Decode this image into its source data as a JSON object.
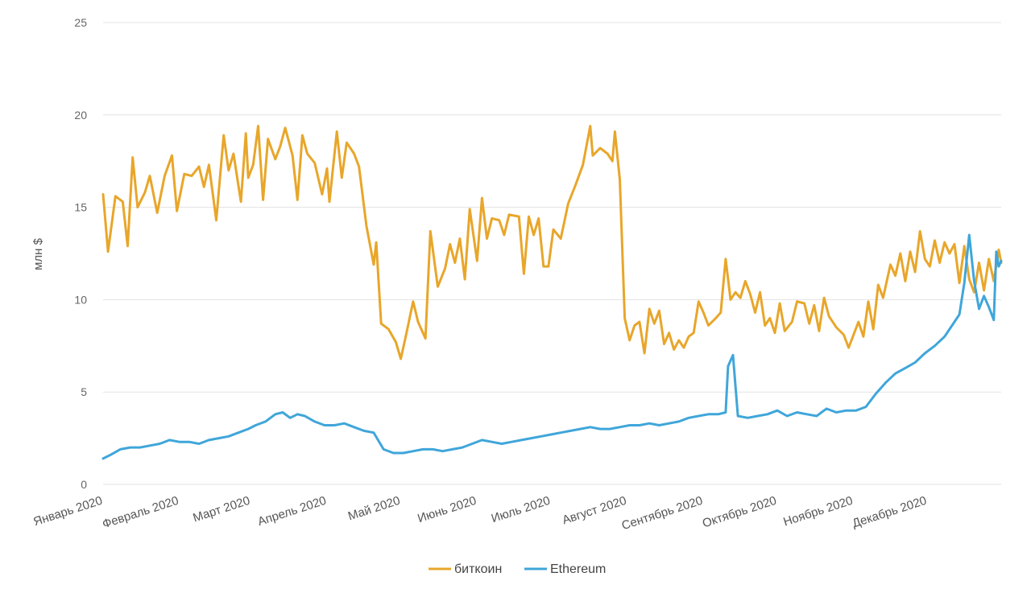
{
  "chart_data": {
    "type": "line",
    "title": "",
    "xlabel": "",
    "ylabel": "млн $",
    "ylim": [
      0,
      25
    ],
    "yticks": [
      0,
      5,
      10,
      15,
      20,
      25
    ],
    "grid": true,
    "legend_position": "bottom-center",
    "xlim": [
      "2020-01-01",
      "2020-12-31"
    ],
    "categories": [
      "Январь 2020",
      "Февраль 2020",
      "Март 2020",
      "Апрель 2020",
      "Май 2020",
      "Июнь 2020",
      "Июль 2020",
      "Август 2020",
      "Сентябрь 2020",
      "Октябрь 2020",
      "Ноябрь 2020",
      "Декабрь 2020"
    ],
    "category_dates": [
      "2020-01-01",
      "2020-02-01",
      "2020-03-01",
      "2020-04-01",
      "2020-05-01",
      "2020-06-01",
      "2020-07-01",
      "2020-08-01",
      "2020-09-01",
      "2020-10-01",
      "2020-11-01",
      "2020-12-01"
    ],
    "series": [
      {
        "name": "биткоин",
        "color": "#E8A62A",
        "points": [
          [
            "2020-01-01",
            15.7
          ],
          [
            "2020-01-03",
            12.6
          ],
          [
            "2020-01-06",
            15.6
          ],
          [
            "2020-01-09",
            15.3
          ],
          [
            "2020-01-11",
            12.9
          ],
          [
            "2020-01-13",
            17.7
          ],
          [
            "2020-01-15",
            15.0
          ],
          [
            "2020-01-18",
            15.8
          ],
          [
            "2020-01-20",
            16.7
          ],
          [
            "2020-01-23",
            14.7
          ],
          [
            "2020-01-26",
            16.7
          ],
          [
            "2020-01-29",
            17.8
          ],
          [
            "2020-01-31",
            14.8
          ],
          [
            "2020-02-03",
            16.8
          ],
          [
            "2020-02-06",
            16.7
          ],
          [
            "2020-02-09",
            17.2
          ],
          [
            "2020-02-11",
            16.1
          ],
          [
            "2020-02-13",
            17.3
          ],
          [
            "2020-02-16",
            14.3
          ],
          [
            "2020-02-19",
            18.9
          ],
          [
            "2020-02-21",
            17.0
          ],
          [
            "2020-02-23",
            17.9
          ],
          [
            "2020-02-26",
            15.3
          ],
          [
            "2020-02-28",
            19.0
          ],
          [
            "2020-02-29",
            16.6
          ],
          [
            "2020-03-02",
            17.3
          ],
          [
            "2020-03-04",
            19.4
          ],
          [
            "2020-03-06",
            15.4
          ],
          [
            "2020-03-08",
            18.7
          ],
          [
            "2020-03-11",
            17.6
          ],
          [
            "2020-03-13",
            18.3
          ],
          [
            "2020-03-15",
            19.3
          ],
          [
            "2020-03-18",
            17.8
          ],
          [
            "2020-03-20",
            15.4
          ],
          [
            "2020-03-22",
            18.9
          ],
          [
            "2020-03-24",
            17.9
          ],
          [
            "2020-03-27",
            17.4
          ],
          [
            "2020-03-30",
            15.7
          ],
          [
            "2020-04-01",
            17.1
          ],
          [
            "2020-04-02",
            15.3
          ],
          [
            "2020-04-05",
            19.1
          ],
          [
            "2020-04-07",
            16.6
          ],
          [
            "2020-04-09",
            18.5
          ],
          [
            "2020-04-12",
            17.9
          ],
          [
            "2020-04-14",
            17.2
          ],
          [
            "2020-04-17",
            14.0
          ],
          [
            "2020-04-20",
            11.9
          ],
          [
            "2020-04-21",
            13.1
          ],
          [
            "2020-04-23",
            8.7
          ],
          [
            "2020-04-26",
            8.4
          ],
          [
            "2020-04-29",
            7.7
          ],
          [
            "2020-05-01",
            6.8
          ],
          [
            "2020-05-03",
            8.0
          ],
          [
            "2020-05-06",
            9.9
          ],
          [
            "2020-05-08",
            8.8
          ],
          [
            "2020-05-11",
            7.9
          ],
          [
            "2020-05-13",
            13.7
          ],
          [
            "2020-05-16",
            10.7
          ],
          [
            "2020-05-19",
            11.7
          ],
          [
            "2020-05-21",
            13.0
          ],
          [
            "2020-05-23",
            12.0
          ],
          [
            "2020-05-25",
            13.3
          ],
          [
            "2020-05-27",
            11.1
          ],
          [
            "2020-05-29",
            14.9
          ],
          [
            "2020-06-01",
            12.1
          ],
          [
            "2020-06-03",
            15.5
          ],
          [
            "2020-06-05",
            13.3
          ],
          [
            "2020-06-07",
            14.4
          ],
          [
            "2020-06-10",
            14.3
          ],
          [
            "2020-06-12",
            13.5
          ],
          [
            "2020-06-14",
            14.6
          ],
          [
            "2020-06-18",
            14.5
          ],
          [
            "2020-06-20",
            11.4
          ],
          [
            "2020-06-22",
            14.5
          ],
          [
            "2020-06-24",
            13.5
          ],
          [
            "2020-06-26",
            14.4
          ],
          [
            "2020-06-28",
            11.8
          ],
          [
            "2020-06-30",
            11.8
          ],
          [
            "2020-07-02",
            13.8
          ],
          [
            "2020-07-05",
            13.3
          ],
          [
            "2020-07-08",
            15.2
          ],
          [
            "2020-07-11",
            16.2
          ],
          [
            "2020-07-14",
            17.3
          ],
          [
            "2020-07-17",
            19.4
          ],
          [
            "2020-07-18",
            17.8
          ],
          [
            "2020-07-21",
            18.2
          ],
          [
            "2020-07-24",
            17.9
          ],
          [
            "2020-07-26",
            17.5
          ],
          [
            "2020-07-27",
            19.1
          ],
          [
            "2020-07-29",
            16.5
          ],
          [
            "2020-07-31",
            9.0
          ],
          [
            "2020-08-02",
            7.8
          ],
          [
            "2020-08-04",
            8.6
          ],
          [
            "2020-08-06",
            8.8
          ],
          [
            "2020-08-08",
            7.1
          ],
          [
            "2020-08-10",
            9.5
          ],
          [
            "2020-08-12",
            8.7
          ],
          [
            "2020-08-14",
            9.4
          ],
          [
            "2020-08-16",
            7.6
          ],
          [
            "2020-08-18",
            8.2
          ],
          [
            "2020-08-20",
            7.3
          ],
          [
            "2020-08-22",
            7.8
          ],
          [
            "2020-08-24",
            7.4
          ],
          [
            "2020-08-26",
            8.0
          ],
          [
            "2020-08-28",
            8.2
          ],
          [
            "2020-08-30",
            9.9
          ],
          [
            "2020-09-01",
            9.3
          ],
          [
            "2020-09-03",
            8.6
          ],
          [
            "2020-09-06",
            9.0
          ],
          [
            "2020-09-08",
            9.3
          ],
          [
            "2020-09-10",
            12.2
          ],
          [
            "2020-09-12",
            10.0
          ],
          [
            "2020-09-14",
            10.4
          ],
          [
            "2020-09-16",
            10.1
          ],
          [
            "2020-09-18",
            11.0
          ],
          [
            "2020-09-20",
            10.3
          ],
          [
            "2020-09-22",
            9.3
          ],
          [
            "2020-09-24",
            10.4
          ],
          [
            "2020-09-26",
            8.6
          ],
          [
            "2020-09-28",
            9.0
          ],
          [
            "2020-09-30",
            8.2
          ],
          [
            "2020-10-02",
            9.8
          ],
          [
            "2020-10-04",
            8.3
          ],
          [
            "2020-10-07",
            8.8
          ],
          [
            "2020-10-09",
            9.9
          ],
          [
            "2020-10-12",
            9.8
          ],
          [
            "2020-10-14",
            8.7
          ],
          [
            "2020-10-16",
            9.7
          ],
          [
            "2020-10-18",
            8.3
          ],
          [
            "2020-10-20",
            10.1
          ],
          [
            "2020-10-22",
            9.1
          ],
          [
            "2020-10-25",
            8.5
          ],
          [
            "2020-10-28",
            8.1
          ],
          [
            "2020-10-30",
            7.4
          ],
          [
            "2020-11-01",
            8.1
          ],
          [
            "2020-11-03",
            8.8
          ],
          [
            "2020-11-05",
            8.0
          ],
          [
            "2020-11-07",
            9.9
          ],
          [
            "2020-11-09",
            8.4
          ],
          [
            "2020-11-11",
            10.8
          ],
          [
            "2020-11-13",
            10.1
          ],
          [
            "2020-11-16",
            11.9
          ],
          [
            "2020-11-18",
            11.3
          ],
          [
            "2020-11-20",
            12.5
          ],
          [
            "2020-11-22",
            11.0
          ],
          [
            "2020-11-24",
            12.6
          ],
          [
            "2020-11-26",
            11.5
          ],
          [
            "2020-11-28",
            13.7
          ],
          [
            "2020-11-30",
            12.2
          ],
          [
            "2020-12-02",
            11.8
          ],
          [
            "2020-12-04",
            13.2
          ],
          [
            "2020-12-06",
            12.0
          ],
          [
            "2020-12-08",
            13.1
          ],
          [
            "2020-12-10",
            12.5
          ],
          [
            "2020-12-12",
            13.0
          ],
          [
            "2020-12-14",
            10.9
          ],
          [
            "2020-12-16",
            12.9
          ],
          [
            "2020-12-18",
            11.1
          ],
          [
            "2020-12-20",
            10.4
          ],
          [
            "2020-12-22",
            12.0
          ],
          [
            "2020-12-24",
            10.5
          ],
          [
            "2020-12-26",
            12.2
          ],
          [
            "2020-12-28",
            11.0
          ],
          [
            "2020-12-30",
            12.7
          ],
          [
            "2020-12-31",
            12.0
          ]
        ]
      },
      {
        "name": "Ethereum",
        "color": "#3FA6DA",
        "points": [
          [
            "2020-01-01",
            1.4
          ],
          [
            "2020-01-04",
            1.6
          ],
          [
            "2020-01-08",
            1.9
          ],
          [
            "2020-01-12",
            2.0
          ],
          [
            "2020-01-16",
            2.0
          ],
          [
            "2020-01-20",
            2.1
          ],
          [
            "2020-01-24",
            2.2
          ],
          [
            "2020-01-28",
            2.4
          ],
          [
            "2020-02-01",
            2.3
          ],
          [
            "2020-02-05",
            2.3
          ],
          [
            "2020-02-09",
            2.2
          ],
          [
            "2020-02-13",
            2.4
          ],
          [
            "2020-02-17",
            2.5
          ],
          [
            "2020-02-21",
            2.6
          ],
          [
            "2020-02-25",
            2.8
          ],
          [
            "2020-02-29",
            3.0
          ],
          [
            "2020-03-03",
            3.2
          ],
          [
            "2020-03-07",
            3.4
          ],
          [
            "2020-03-11",
            3.8
          ],
          [
            "2020-03-14",
            3.9
          ],
          [
            "2020-03-17",
            3.6
          ],
          [
            "2020-03-20",
            3.8
          ],
          [
            "2020-03-23",
            3.7
          ],
          [
            "2020-03-27",
            3.4
          ],
          [
            "2020-03-31",
            3.2
          ],
          [
            "2020-04-04",
            3.2
          ],
          [
            "2020-04-08",
            3.3
          ],
          [
            "2020-04-12",
            3.1
          ],
          [
            "2020-04-16",
            2.9
          ],
          [
            "2020-04-20",
            2.8
          ],
          [
            "2020-04-24",
            1.9
          ],
          [
            "2020-04-28",
            1.7
          ],
          [
            "2020-05-02",
            1.7
          ],
          [
            "2020-05-06",
            1.8
          ],
          [
            "2020-05-10",
            1.9
          ],
          [
            "2020-05-14",
            1.9
          ],
          [
            "2020-05-18",
            1.8
          ],
          [
            "2020-05-22",
            1.9
          ],
          [
            "2020-05-26",
            2.0
          ],
          [
            "2020-05-30",
            2.2
          ],
          [
            "2020-06-03",
            2.4
          ],
          [
            "2020-06-07",
            2.3
          ],
          [
            "2020-06-11",
            2.2
          ],
          [
            "2020-06-15",
            2.3
          ],
          [
            "2020-06-19",
            2.4
          ],
          [
            "2020-06-23",
            2.5
          ],
          [
            "2020-06-27",
            2.6
          ],
          [
            "2020-07-01",
            2.7
          ],
          [
            "2020-07-05",
            2.8
          ],
          [
            "2020-07-09",
            2.9
          ],
          [
            "2020-07-13",
            3.0
          ],
          [
            "2020-07-17",
            3.1
          ],
          [
            "2020-07-21",
            3.0
          ],
          [
            "2020-07-25",
            3.0
          ],
          [
            "2020-07-29",
            3.1
          ],
          [
            "2020-08-02",
            3.2
          ],
          [
            "2020-08-06",
            3.2
          ],
          [
            "2020-08-10",
            3.3
          ],
          [
            "2020-08-14",
            3.2
          ],
          [
            "2020-08-18",
            3.3
          ],
          [
            "2020-08-22",
            3.4
          ],
          [
            "2020-08-26",
            3.6
          ],
          [
            "2020-08-30",
            3.7
          ],
          [
            "2020-09-03",
            3.8
          ],
          [
            "2020-09-07",
            3.8
          ],
          [
            "2020-09-10",
            3.9
          ],
          [
            "2020-09-11",
            6.4
          ],
          [
            "2020-09-13",
            7.0
          ],
          [
            "2020-09-15",
            3.7
          ],
          [
            "2020-09-19",
            3.6
          ],
          [
            "2020-09-23",
            3.7
          ],
          [
            "2020-09-27",
            3.8
          ],
          [
            "2020-10-01",
            4.0
          ],
          [
            "2020-10-05",
            3.7
          ],
          [
            "2020-10-09",
            3.9
          ],
          [
            "2020-10-13",
            3.8
          ],
          [
            "2020-10-17",
            3.7
          ],
          [
            "2020-10-21",
            4.1
          ],
          [
            "2020-10-25",
            3.9
          ],
          [
            "2020-10-29",
            4.0
          ],
          [
            "2020-11-02",
            4.0
          ],
          [
            "2020-11-06",
            4.2
          ],
          [
            "2020-11-10",
            4.9
          ],
          [
            "2020-11-14",
            5.5
          ],
          [
            "2020-11-18",
            6.0
          ],
          [
            "2020-11-22",
            6.3
          ],
          [
            "2020-11-26",
            6.6
          ],
          [
            "2020-11-30",
            7.1
          ],
          [
            "2020-12-04",
            7.5
          ],
          [
            "2020-12-08",
            8.0
          ],
          [
            "2020-12-12",
            8.8
          ],
          [
            "2020-12-14",
            9.2
          ],
          [
            "2020-12-16",
            10.9
          ],
          [
            "2020-12-18",
            13.5
          ],
          [
            "2020-12-20",
            11.0
          ],
          [
            "2020-12-22",
            9.5
          ],
          [
            "2020-12-24",
            10.2
          ],
          [
            "2020-12-26",
            9.6
          ],
          [
            "2020-12-28",
            8.9
          ],
          [
            "2020-12-29",
            12.6
          ],
          [
            "2020-12-30",
            11.8
          ],
          [
            "2020-12-31",
            12.1
          ]
        ]
      }
    ]
  }
}
